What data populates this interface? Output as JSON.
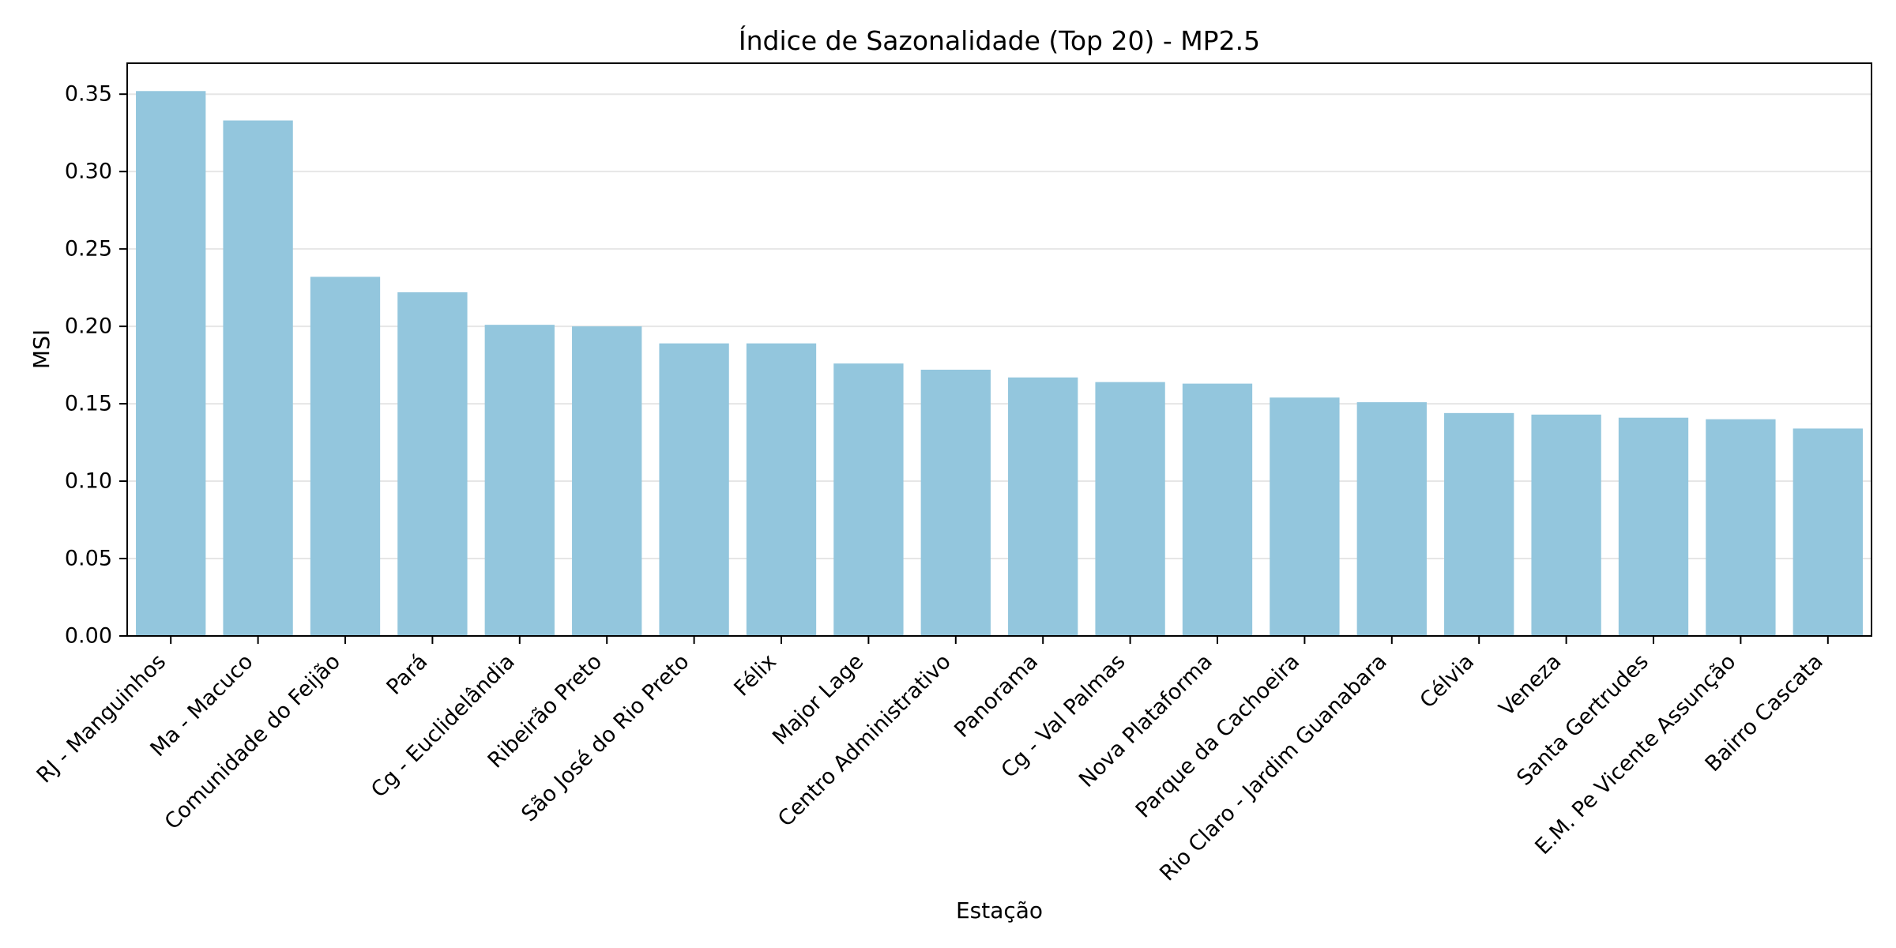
{
  "chart_data": {
    "type": "bar",
    "title": "Índice de Sazonalidade (Top 20) - MP2.5",
    "xlabel": "Estação",
    "ylabel": "MSI",
    "categories": [
      "RJ - Manguinhos",
      "Ma - Macuco",
      "Comunidade do Feijão",
      "Pará",
      "Cg - Euclidelândia",
      "Ribeirão Preto",
      "São José do Rio Preto",
      "Félix",
      "Major Lage",
      "Centro Administrativo",
      "Panorama",
      "Cg - Val Palmas",
      "Nova Plataforma",
      "Parque da Cachoeira",
      "Rio Claro - Jardim Guanabara",
      "Célvia",
      "Veneza",
      "Santa Gertrudes",
      "E.M. Pe Vicente Assunção",
      "Bairro Cascata"
    ],
    "values": [
      0.352,
      0.333,
      0.232,
      0.222,
      0.201,
      0.2,
      0.189,
      0.189,
      0.176,
      0.172,
      0.167,
      0.164,
      0.163,
      0.154,
      0.151,
      0.144,
      0.143,
      0.141,
      0.14,
      0.134
    ],
    "ylim": [
      0,
      0.37
    ],
    "yticks": [
      "0.00",
      "0.05",
      "0.10",
      "0.15",
      "0.20",
      "0.25",
      "0.30",
      "0.35"
    ],
    "grid": "horizontal",
    "legend": "none",
    "bar_color": "#93c6dd",
    "grid_color": "#e6e6e6",
    "axis_color": "#000000"
  }
}
